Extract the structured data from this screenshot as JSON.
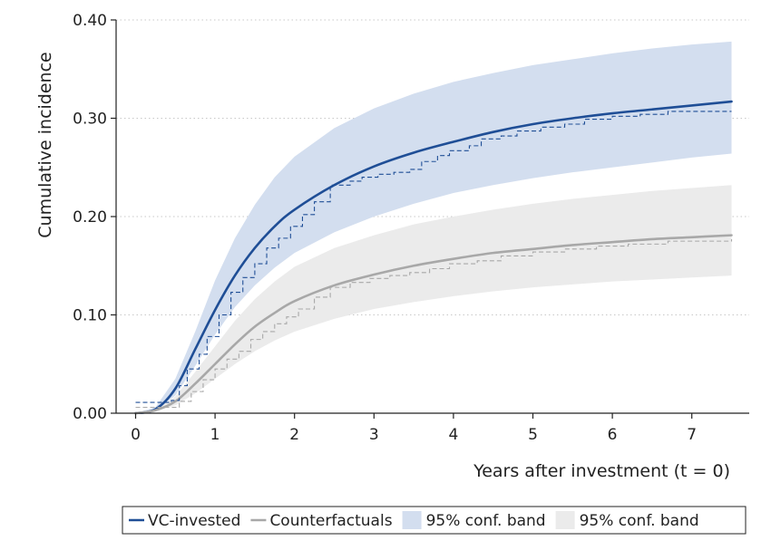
{
  "chart_data": {
    "type": "line",
    "title": "",
    "xlabel": "Years after investment (t = 0)",
    "ylabel": "Cumulative incidence",
    "xlim": [
      0,
      7.7
    ],
    "ylim": [
      0,
      0.4
    ],
    "xticks": [
      0,
      1,
      2,
      3,
      4,
      5,
      6,
      7
    ],
    "xtick_labels": [
      "0",
      "1",
      "2",
      "3",
      "4",
      "5",
      "6",
      "7"
    ],
    "yticks": [
      0,
      0.1,
      0.2,
      0.3,
      0.4
    ],
    "ytick_labels": [
      "0.00",
      "0.10",
      "0.20",
      "0.30",
      "0.40"
    ],
    "grid": "horizontal dotted",
    "legend_position": "bottom",
    "colors": {
      "vc_line": "#1f4e96",
      "vc_band": "#d3deef",
      "cf_line": "#a8a8a8",
      "cf_band": "#ebebeb",
      "grid": "#c8c8c8",
      "axis": "#222222"
    },
    "series": [
      {
        "name": "VC-invested",
        "style": "solid",
        "x": [
          0,
          0.25,
          0.5,
          0.75,
          1,
          1.25,
          1.5,
          1.75,
          2,
          2.5,
          3,
          3.5,
          4,
          4.5,
          5,
          5.5,
          6,
          6.5,
          7,
          7.5
        ],
        "y": [
          0,
          0.004,
          0.025,
          0.065,
          0.105,
          0.14,
          0.168,
          0.19,
          0.207,
          0.232,
          0.251,
          0.265,
          0.276,
          0.286,
          0.294,
          0.3,
          0.305,
          0.309,
          0.313,
          0.317
        ]
      },
      {
        "name": "Counterfactuals",
        "style": "solid",
        "x": [
          0,
          0.25,
          0.5,
          0.75,
          1,
          1.25,
          1.5,
          1.75,
          2,
          2.5,
          3,
          3.5,
          4,
          4.5,
          5,
          5.5,
          6,
          6.5,
          7,
          7.5
        ],
        "y": [
          0,
          0.003,
          0.012,
          0.03,
          0.05,
          0.07,
          0.088,
          0.102,
          0.114,
          0.13,
          0.141,
          0.15,
          0.157,
          0.163,
          0.167,
          0.171,
          0.174,
          0.177,
          0.179,
          0.181
        ]
      },
      {
        "name": "95% conf. band",
        "type": "band",
        "of": "VC-invested",
        "x": [
          0,
          0.25,
          0.5,
          0.75,
          1,
          1.25,
          1.5,
          1.75,
          2,
          2.5,
          3,
          3.5,
          4,
          4.5,
          5,
          5.5,
          6,
          6.5,
          7,
          7.5
        ],
        "lower": [
          0,
          0.003,
          0.018,
          0.048,
          0.08,
          0.108,
          0.13,
          0.148,
          0.163,
          0.184,
          0.2,
          0.213,
          0.224,
          0.232,
          0.239,
          0.245,
          0.25,
          0.255,
          0.26,
          0.264
        ],
        "upper": [
          0,
          0.006,
          0.035,
          0.083,
          0.135,
          0.178,
          0.212,
          0.24,
          0.261,
          0.29,
          0.31,
          0.325,
          0.337,
          0.346,
          0.354,
          0.36,
          0.366,
          0.371,
          0.375,
          0.378
        ]
      },
      {
        "name": "95% conf. band",
        "type": "band",
        "of": "Counterfactuals",
        "x": [
          0,
          0.25,
          0.5,
          0.75,
          1,
          1.25,
          1.5,
          1.75,
          2,
          2.5,
          3,
          3.5,
          4,
          4.5,
          5,
          5.5,
          6,
          6.5,
          7,
          7.5
        ],
        "lower": [
          0,
          0.002,
          0.008,
          0.02,
          0.035,
          0.05,
          0.063,
          0.074,
          0.083,
          0.096,
          0.106,
          0.113,
          0.119,
          0.124,
          0.128,
          0.131,
          0.134,
          0.136,
          0.138,
          0.14
        ],
        "upper": [
          0,
          0.004,
          0.017,
          0.042,
          0.068,
          0.094,
          0.116,
          0.134,
          0.149,
          0.168,
          0.181,
          0.192,
          0.2,
          0.207,
          0.213,
          0.218,
          0.222,
          0.226,
          0.229,
          0.232
        ]
      },
      {
        "name": "VC-invested (empirical)",
        "style": "dashed-step",
        "x": [
          0,
          0.35,
          0.45,
          0.55,
          0.65,
          0.8,
          0.9,
          1.05,
          1.2,
          1.35,
          1.5,
          1.65,
          1.8,
          1.95,
          2.1,
          2.25,
          2.45,
          2.7,
          2.85,
          3.05,
          3.25,
          3.45,
          3.6,
          3.8,
          3.95,
          4.2,
          4.35,
          4.6,
          4.8,
          5.1,
          5.4,
          5.65,
          6.0,
          6.35,
          6.7,
          7.5
        ],
        "y": [
          0.011,
          0.011,
          0.013,
          0.028,
          0.045,
          0.06,
          0.078,
          0.1,
          0.123,
          0.138,
          0.152,
          0.168,
          0.178,
          0.19,
          0.202,
          0.215,
          0.232,
          0.236,
          0.24,
          0.243,
          0.245,
          0.248,
          0.256,
          0.262,
          0.267,
          0.272,
          0.279,
          0.282,
          0.287,
          0.291,
          0.294,
          0.299,
          0.302,
          0.304,
          0.307,
          0.307
        ]
      },
      {
        "name": "Counterfactuals (empirical)",
        "style": "dashed-step",
        "x": [
          0,
          0.4,
          0.55,
          0.7,
          0.85,
          1.0,
          1.15,
          1.3,
          1.45,
          1.6,
          1.75,
          1.9,
          2.05,
          2.25,
          2.45,
          2.7,
          2.95,
          3.2,
          3.45,
          3.7,
          3.95,
          4.3,
          4.6,
          5.0,
          5.4,
          5.8,
          6.2,
          6.7,
          7.5
        ],
        "y": [
          0.006,
          0.006,
          0.012,
          0.022,
          0.034,
          0.045,
          0.055,
          0.063,
          0.075,
          0.083,
          0.091,
          0.098,
          0.106,
          0.118,
          0.128,
          0.133,
          0.137,
          0.14,
          0.143,
          0.147,
          0.152,
          0.155,
          0.16,
          0.164,
          0.167,
          0.17,
          0.172,
          0.175,
          0.177
        ]
      }
    ],
    "legend": [
      {
        "label": "VC-invested",
        "kind": "line",
        "color": "#1f4e96"
      },
      {
        "label": "Counterfactuals",
        "kind": "line",
        "color": "#a8a8a8"
      },
      {
        "label": "95% conf. band",
        "kind": "patch",
        "color": "#d3deef"
      },
      {
        "label": "95% conf. band",
        "kind": "patch",
        "color": "#ebebeb"
      }
    ]
  }
}
